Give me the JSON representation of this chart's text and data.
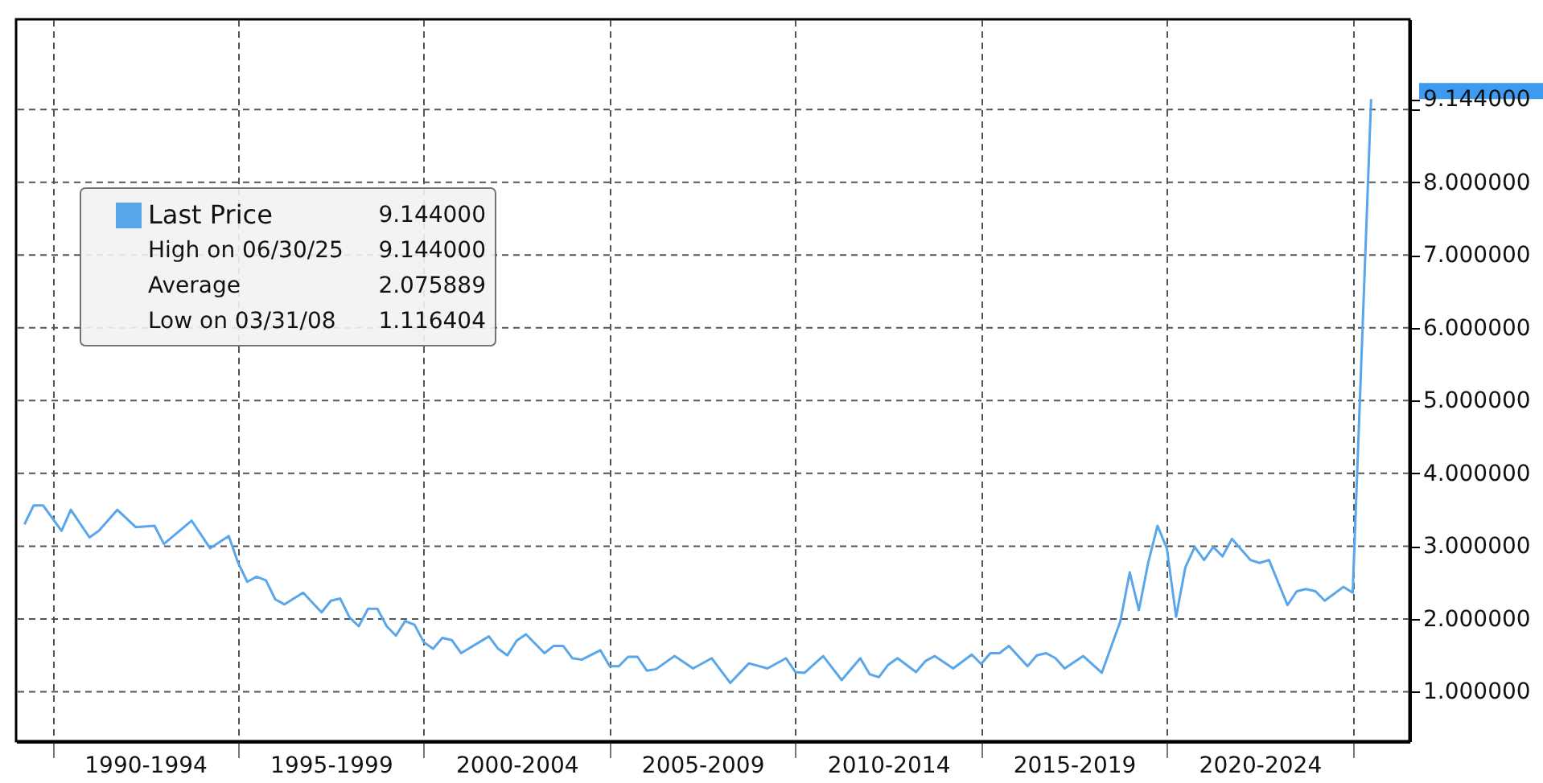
{
  "chart_data": {
    "type": "line",
    "series": [
      {
        "name": "Last Price",
        "color": "#5aa6ea",
        "x": [
          "1989-03-31",
          "1989-06-30",
          "1989-09-30",
          "1990-03-31",
          "1990-06-30",
          "1990-12-31",
          "1991-03-31",
          "1991-09-30",
          "1992-03-31",
          "1992-09-30",
          "1992-12-31",
          "1993-09-30",
          "1994-03-31",
          "1994-09-30",
          "1994-12-31",
          "1995-03-31",
          "1995-06-30",
          "1995-09-30",
          "1995-12-31",
          "1996-03-31",
          "1996-09-30",
          "1997-03-31",
          "1997-06-30",
          "1997-09-30",
          "1997-12-31",
          "1998-03-31",
          "1998-06-30",
          "1998-09-30",
          "1998-12-31",
          "1999-03-31",
          "1999-06-30",
          "1999-09-30",
          "1999-12-31",
          "2000-03-31",
          "2000-06-30",
          "2000-09-30",
          "2000-12-31",
          "2001-09-30",
          "2001-12-31",
          "2002-03-31",
          "2002-06-30",
          "2002-09-30",
          "2003-03-31",
          "2003-06-30",
          "2003-09-30",
          "2003-12-31",
          "2004-03-31",
          "2004-09-30",
          "2004-12-31",
          "2005-03-31",
          "2005-06-30",
          "2005-09-30",
          "2005-12-31",
          "2006-03-31",
          "2006-09-30",
          "2007-03-31",
          "2007-09-30",
          "2008-03-31",
          "2008-09-30",
          "2009-03-31",
          "2009-09-30",
          "2009-12-31",
          "2010-03-31",
          "2010-09-30",
          "2011-03-31",
          "2011-09-30",
          "2011-12-31",
          "2012-03-31",
          "2012-06-30",
          "2012-09-30",
          "2013-03-31",
          "2013-06-30",
          "2013-09-30",
          "2014-03-31",
          "2014-09-30",
          "2014-12-31",
          "2015-03-31",
          "2015-06-30",
          "2015-09-30",
          "2016-03-31",
          "2016-06-30",
          "2016-09-30",
          "2016-12-31",
          "2017-03-31",
          "2017-09-30",
          "2018-03-31",
          "2018-09-30",
          "2018-12-31",
          "2019-03-31",
          "2019-06-30",
          "2019-09-30",
          "2019-12-31",
          "2020-03-31",
          "2020-06-30",
          "2020-09-30",
          "2020-12-31",
          "2021-03-31",
          "2021-06-30",
          "2021-09-30",
          "2022-03-31",
          "2022-06-30",
          "2022-09-30",
          "2023-03-31",
          "2023-06-30",
          "2023-09-30",
          "2023-12-31",
          "2024-03-31",
          "2024-09-30",
          "2024-12-31",
          "2025-06-30"
        ],
        "values": [
          3.3,
          3.56,
          3.56,
          3.21,
          3.5,
          3.12,
          3.21,
          3.5,
          3.26,
          3.28,
          3.03,
          3.35,
          2.97,
          3.14,
          2.77,
          2.51,
          2.58,
          2.53,
          2.27,
          2.2,
          2.36,
          2.09,
          2.25,
          2.28,
          2.02,
          1.9,
          2.14,
          2.14,
          1.9,
          1.77,
          1.97,
          1.92,
          1.68,
          1.59,
          1.74,
          1.71,
          1.53,
          1.76,
          1.59,
          1.5,
          1.7,
          1.79,
          1.53,
          1.63,
          1.63,
          1.46,
          1.44,
          1.57,
          1.35,
          1.35,
          1.48,
          1.48,
          1.29,
          1.31,
          1.49,
          1.32,
          1.46,
          1.12,
          1.39,
          1.32,
          1.46,
          1.27,
          1.26,
          1.49,
          1.16,
          1.46,
          1.24,
          1.2,
          1.37,
          1.46,
          1.27,
          1.42,
          1.49,
          1.32,
          1.51,
          1.38,
          1.53,
          1.53,
          1.63,
          1.35,
          1.5,
          1.53,
          1.46,
          1.32,
          1.49,
          1.26,
          1.97,
          2.64,
          2.12,
          2.77,
          3.28,
          2.97,
          2.03,
          2.71,
          2.99,
          2.81,
          2.99,
          2.86,
          3.1,
          2.81,
          2.77,
          2.81,
          2.19,
          2.38,
          2.41,
          2.38,
          2.25,
          2.44,
          2.36,
          9.144
        ]
      }
    ],
    "xlim": [
      "1989-01-08",
      "2026-07-12"
    ],
    "xticks": [
      {
        "value": "1990-01-01",
        "label": null
      },
      {
        "value": "1992-07-01",
        "label": "1990-1994"
      },
      {
        "value": "1995-01-01",
        "label": null
      },
      {
        "value": "1997-07-01",
        "label": "1995-1999"
      },
      {
        "value": "2000-01-01",
        "label": null
      },
      {
        "value": "2002-07-01",
        "label": "2000-2004"
      },
      {
        "value": "2005-01-01",
        "label": null
      },
      {
        "value": "2007-07-01",
        "label": "2005-2009"
      },
      {
        "value": "2010-01-01",
        "label": null
      },
      {
        "value": "2012-07-01",
        "label": "2010-2014"
      },
      {
        "value": "2015-01-01",
        "label": null
      },
      {
        "value": "2017-07-01",
        "label": "2015-2019"
      },
      {
        "value": "2020-01-01",
        "label": null
      },
      {
        "value": "2022-07-01",
        "label": "2020-2024"
      },
      {
        "value": "2025-01-01",
        "label": null
      }
    ],
    "ylim": [
      0.32,
      10.24
    ],
    "yticks": [
      {
        "value": 1,
        "label": "1.000000"
      },
      {
        "value": 2,
        "label": "2.000000"
      },
      {
        "value": 3,
        "label": "3.000000"
      },
      {
        "value": 4,
        "label": "4.000000"
      },
      {
        "value": 5,
        "label": "5.000000"
      },
      {
        "value": 6,
        "label": "6.000000"
      },
      {
        "value": 7,
        "label": "7.000000"
      },
      {
        "value": 8,
        "label": "8.000000"
      },
      {
        "value": 9,
        "label": null
      },
      {
        "value": 9.144,
        "label": "9.144000"
      }
    ],
    "grid": true,
    "legend": "top left",
    "line_style": "solid",
    "annotations": [
      "9.144000",
      "High on 06/30/25",
      "9.144000",
      "Average",
      "2.075889",
      "Low on 03/31/08",
      "1.116404"
    ]
  }
}
